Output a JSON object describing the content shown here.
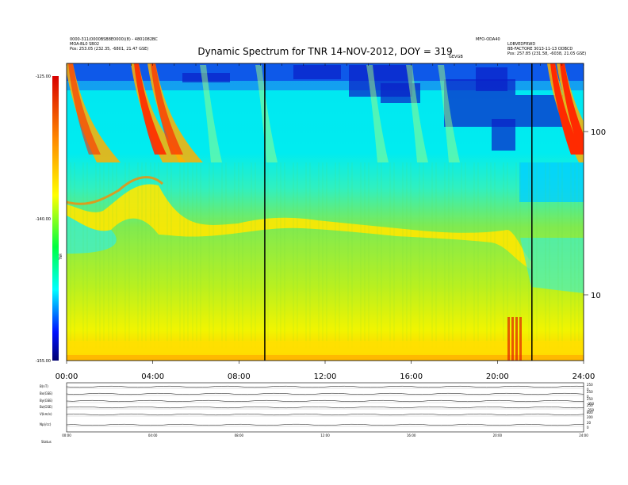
{
  "page": {
    "title": "Dynamic Spectrum for TNR 14-NOV-2012, DOY = 319",
    "header_left": [
      "0000-311(0000BSB8E0000)(8) - 4801082BC",
      "MOA-BL0 SB02",
      "Pos:    253.05 (232.35, -6801, 21.47 GSE)"
    ],
    "header_right": [
      "MFO-ODA40",
      "LOBVEDFRWD",
      "BB-FACTORE 3013-11-13 ODBCD",
      "Pos:    257.85 (231.58, -6038, 21.05 GSE)"
    ],
    "header_mid": "GEVGB"
  },
  "chart_data": [
    {
      "type": "heatmap",
      "title": "Dynamic Spectrum for TNR 14-NOV-2012, DOY = 319",
      "x_ticks": [
        "00:00",
        "04:00",
        "08:00",
        "12:00",
        "16:00",
        "20:00",
        "24:00"
      ],
      "x_range_hours": [
        0,
        24
      ],
      "y_right_ticks": [
        "100",
        "10"
      ],
      "y_right_scale": "log",
      "colorbar_ticks": [
        "-125.00",
        "-140.00",
        "-155.00"
      ],
      "colorbar_label": "TNR",
      "colorbar_range": [
        -155,
        -125
      ],
      "markers_hours": [
        9.2,
        21.6
      ],
      "colors": {
        "background_band": "#00e8f0",
        "dark_band": "#0030e0",
        "green_band": "#80ea50",
        "yellow_band": "#f4f400",
        "burst": "#ff3000",
        "colorbar": [
          "#e00000",
          "#ff8000",
          "#ffff00",
          "#00ff00",
          "#00ffff",
          "#0000ff",
          "#000080"
        ]
      }
    },
    {
      "type": "line",
      "panels": [
        {
          "label": "B(nT)",
          "right_ticks": [
            "250",
            "0"
          ]
        },
        {
          "label": "Bx(GSE)",
          "right_ticks": [
            "250",
            "0"
          ]
        },
        {
          "label": "By(GSE)",
          "right_ticks": [
            "250",
            "-250"
          ]
        },
        {
          "label": "Bz(GSE)",
          "right_ticks": [
            "250",
            "-250"
          ]
        },
        {
          "label": "V(km/s)",
          "right_ticks": [
            "800",
            "200"
          ]
        },
        {
          "label": "Np(/cc)",
          "right_ticks": [
            "20",
            "0"
          ]
        }
      ],
      "x_ticks": [
        "00:00",
        "04:00",
        "08:00",
        "12:00",
        "16:00",
        "20:00",
        "24:00"
      ],
      "footer_label": "Status"
    }
  ]
}
